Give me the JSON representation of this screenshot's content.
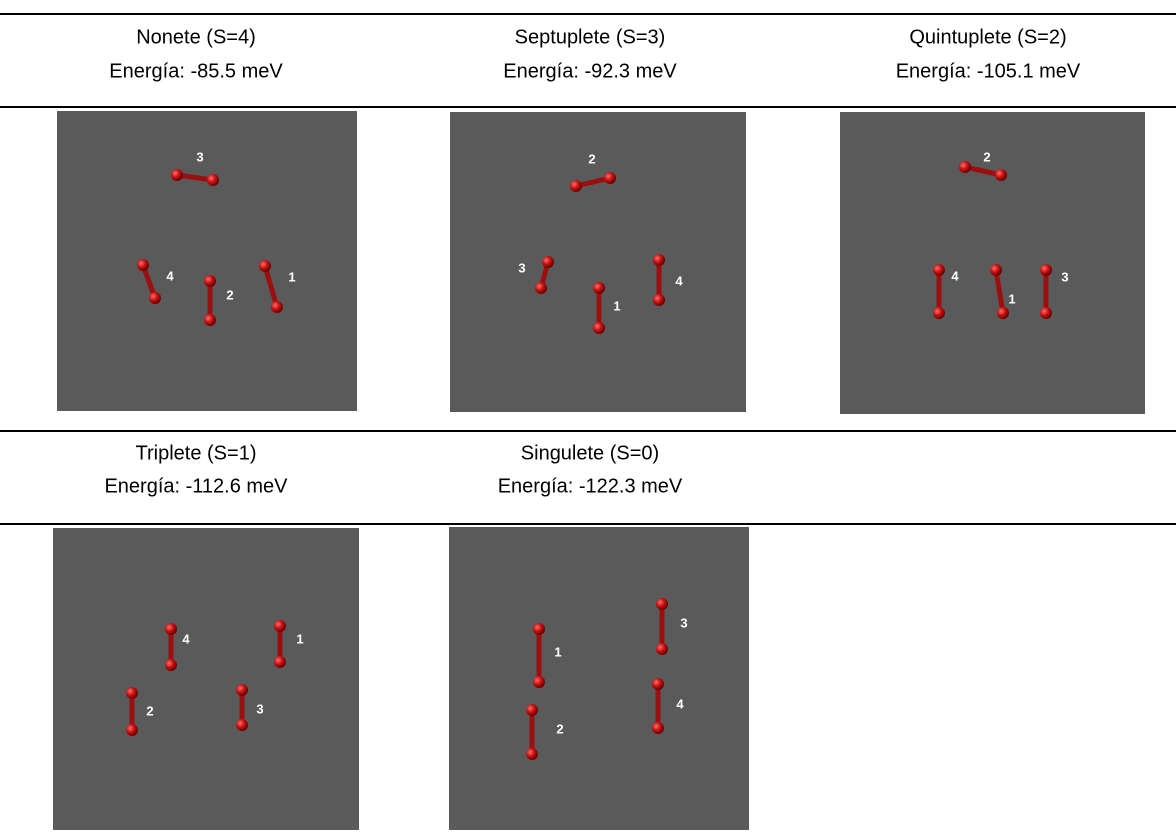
{
  "rows": [
    {
      "cells": [
        {
          "title": "Nonete (S=4)",
          "energy": "Energía: -85.5 meV",
          "labels": [
            "3",
            "4",
            "2",
            "1"
          ]
        },
        {
          "title": "Septuplete (S=3)",
          "energy": "Energía: -92.3 meV",
          "labels": [
            "2",
            "3",
            "1",
            "4"
          ]
        },
        {
          "title": "Quintuplete (S=2)",
          "energy": "Energía: -105.1 meV",
          "labels": [
            "2",
            "4",
            "1",
            "3"
          ]
        }
      ]
    },
    {
      "cells": [
        {
          "title": "Triplete (S=1)",
          "energy": "Energía: -112.6 meV",
          "labels": [
            "4",
            "1",
            "2",
            "3"
          ]
        },
        {
          "title": "Singulete (S=0)",
          "energy": "Energía: -122.3 meV",
          "labels": [
            "1",
            "3",
            "2",
            "4"
          ]
        }
      ]
    }
  ]
}
